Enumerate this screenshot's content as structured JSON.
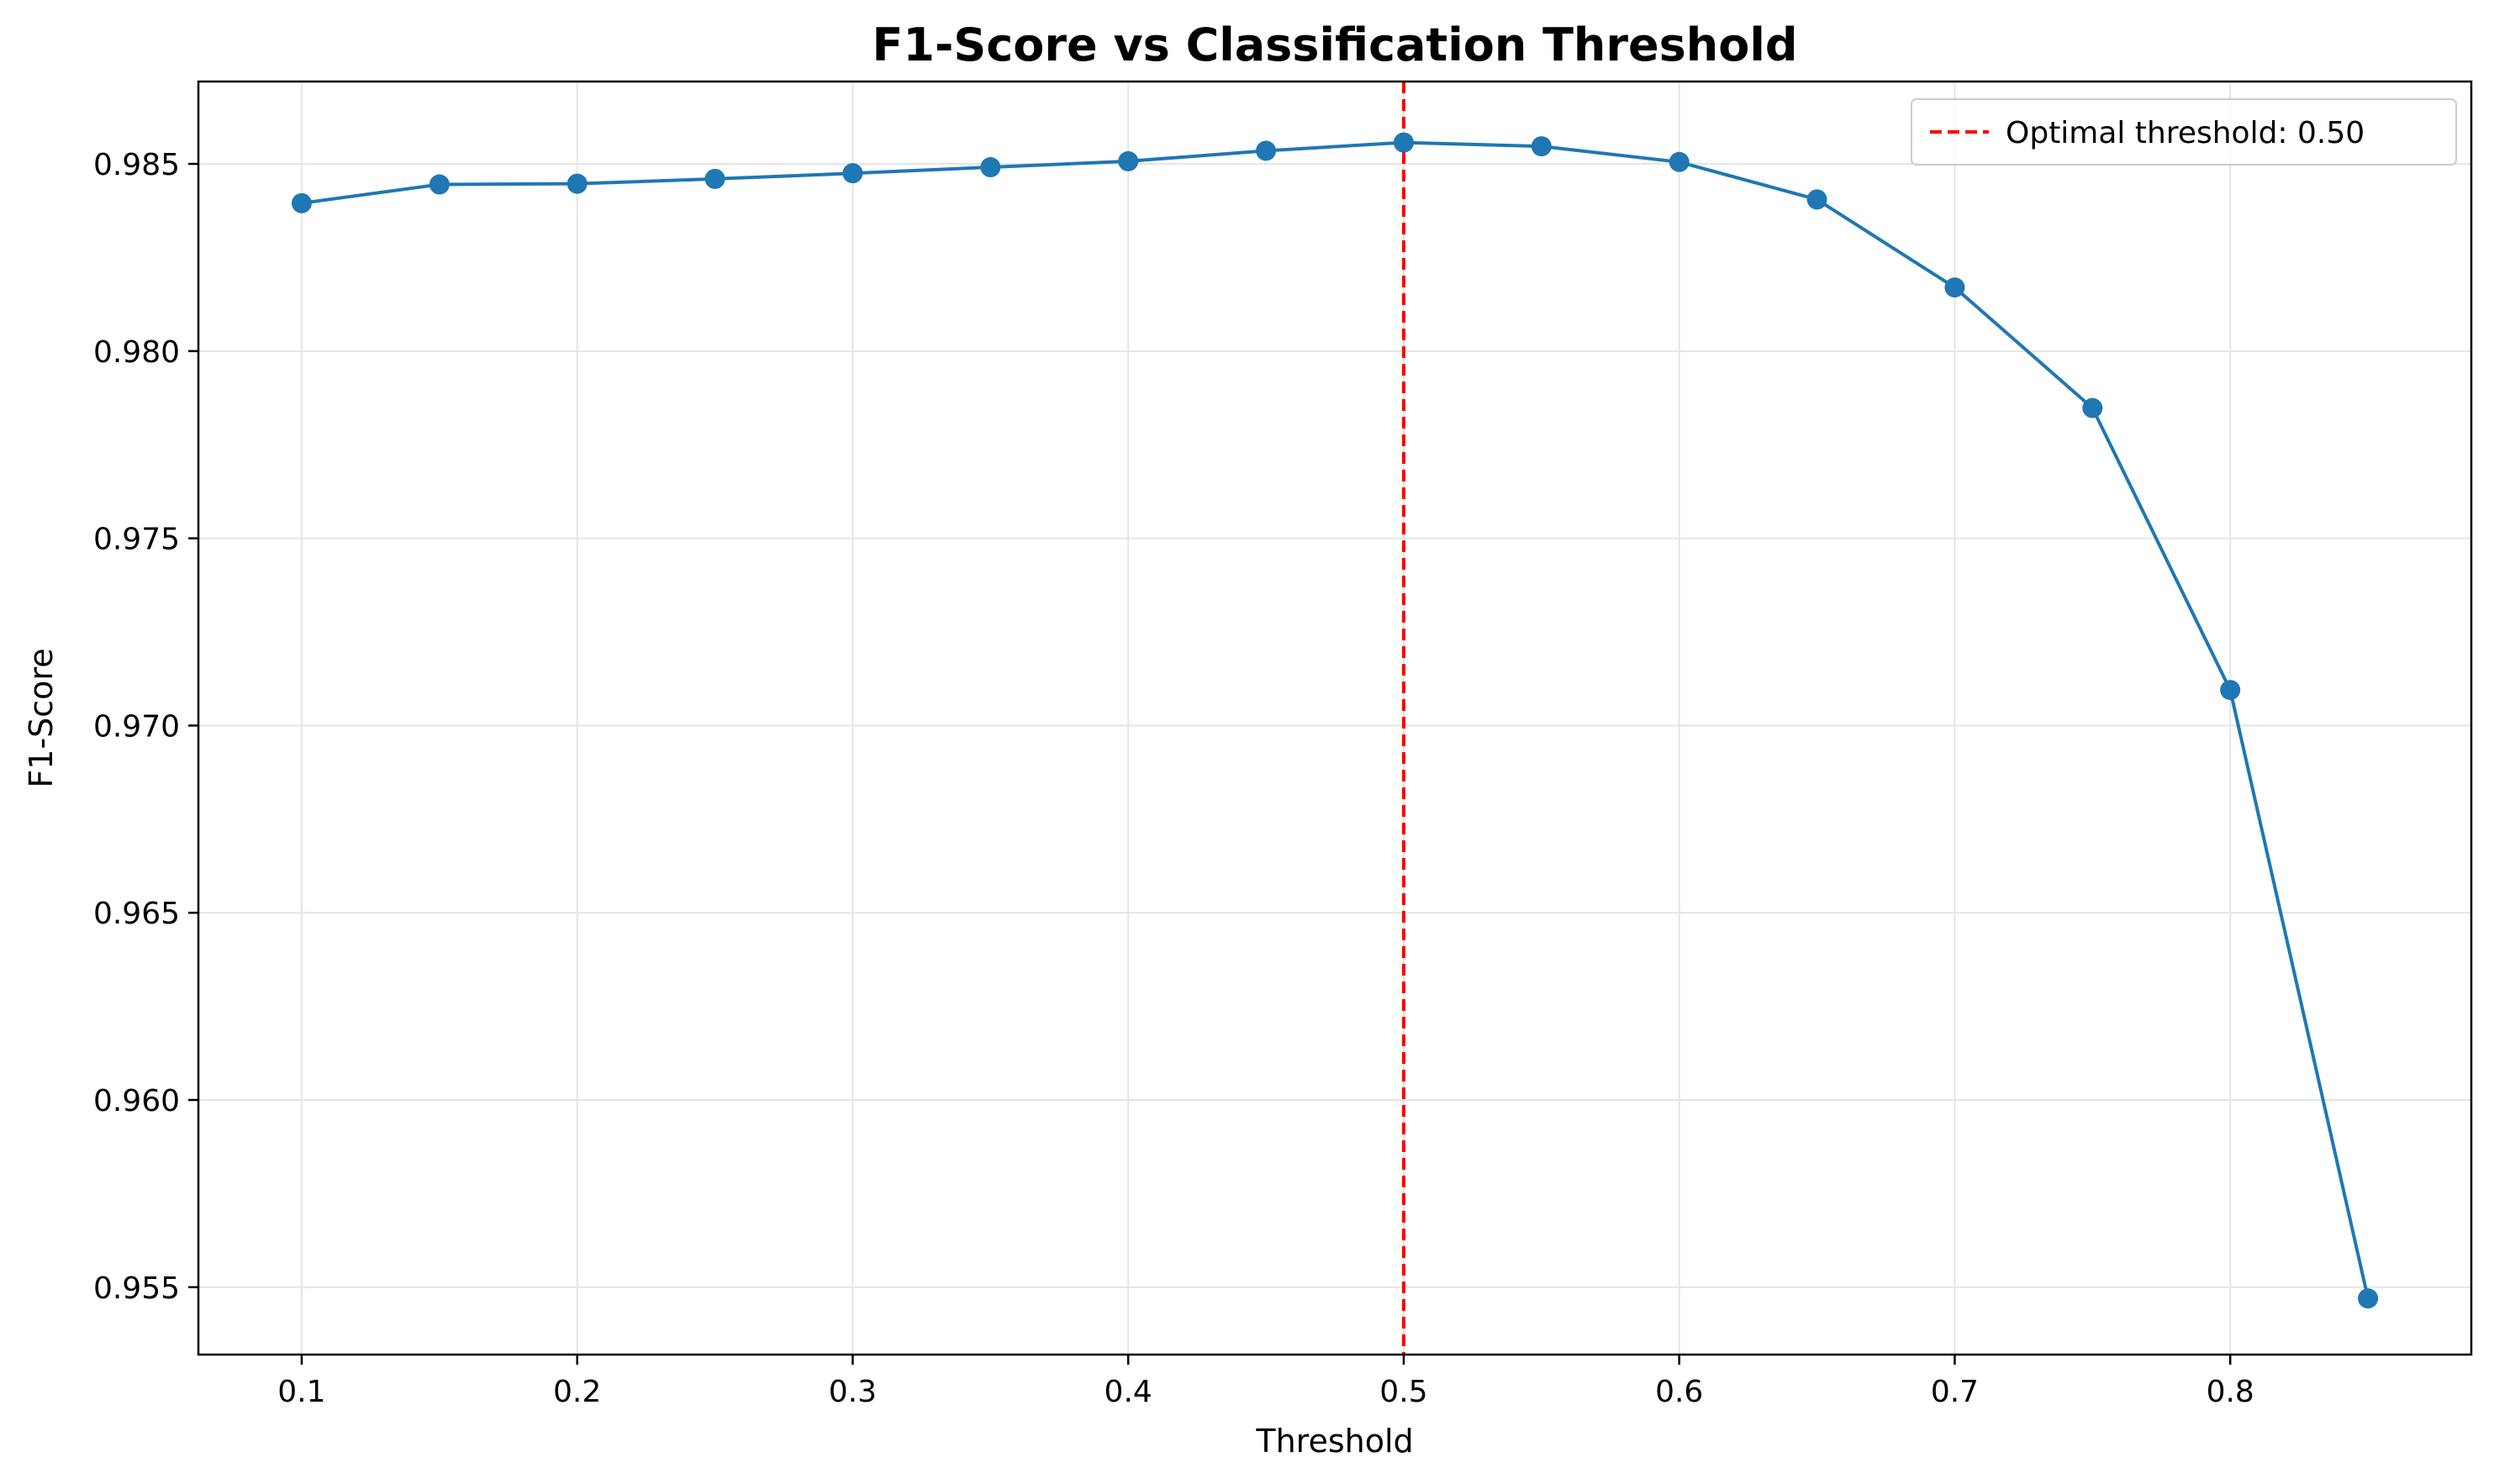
{
  "chart_data": {
    "type": "line",
    "title": "F1-Score vs Classification Threshold",
    "xlabel": "Threshold",
    "ylabel": "F1-Score",
    "xlim": [
      0.0625,
      0.8875
    ],
    "ylim": [
      0.9532,
      0.9872
    ],
    "x_ticks": [
      0.1,
      0.2,
      0.3,
      0.4,
      0.5,
      0.6,
      0.7,
      0.8
    ],
    "x_tick_labels": [
      "0.1",
      "0.2",
      "0.3",
      "0.4",
      "0.5",
      "0.6",
      "0.7",
      "0.8"
    ],
    "y_ticks": [
      0.955,
      0.96,
      0.965,
      0.97,
      0.975,
      0.98,
      0.985
    ],
    "y_tick_labels": [
      "0.955",
      "0.960",
      "0.965",
      "0.970",
      "0.975",
      "0.980",
      "0.985"
    ],
    "grid": true,
    "legend_position": "top-right",
    "series": [
      {
        "color": "#1f77b4",
        "marker": "circle",
        "x": [
          0.1,
          0.15,
          0.2,
          0.25,
          0.3,
          0.35,
          0.4,
          0.45,
          0.5,
          0.55,
          0.6,
          0.65,
          0.7,
          0.75,
          0.8,
          0.85
        ],
        "y": [
          0.98395,
          0.98445,
          0.98447,
          0.9846,
          0.98475,
          0.98491,
          0.98507,
          0.98535,
          0.98557,
          0.98547,
          0.98505,
          0.98405,
          0.9817,
          0.97848,
          0.97095,
          0.9547
        ]
      }
    ],
    "annotations": [
      {
        "type": "vline",
        "x": 0.5,
        "color": "#ff0000",
        "style": "dashed",
        "label": "Optimal threshold: 0.50"
      }
    ]
  }
}
